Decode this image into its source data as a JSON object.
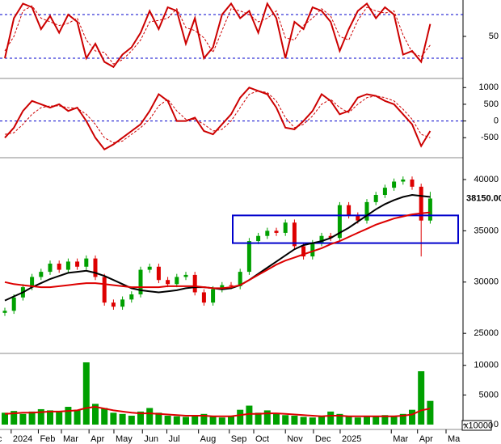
{
  "chart_data": [
    {
      "type": "line",
      "ylim": [
        0,
        100
      ],
      "yticks": [
        50
      ],
      "levels": [
        20,
        80
      ],
      "series": [
        {
          "color": "#cc0000",
          "width": 2,
          "style": "solid",
          "values": [
            20,
            75,
            95,
            90,
            60,
            78,
            55,
            80,
            70,
            20,
            40,
            15,
            8,
            25,
            35,
            55,
            85,
            60,
            90,
            85,
            40,
            75,
            20,
            35,
            80,
            95,
            75,
            85,
            55,
            95,
            75,
            20,
            70,
            60,
            90,
            85,
            70,
            30,
            60,
            85,
            95,
            75,
            90,
            80,
            25,
            30,
            15,
            67
          ]
        },
        {
          "color": "#cc0000",
          "width": 1,
          "style": "dashed",
          "values": [
            30,
            50,
            85,
            92,
            75,
            70,
            65,
            68,
            75,
            45,
            30,
            28,
            12,
            18,
            30,
            45,
            70,
            72,
            75,
            88,
            62,
            58,
            48,
            28,
            58,
            88,
            85,
            80,
            70,
            75,
            85,
            48,
            45,
            65,
            75,
            88,
            78,
            50,
            45,
            72,
            90,
            85,
            82,
            85,
            52,
            28,
            22,
            38
          ]
        }
      ]
    },
    {
      "type": "line",
      "ylim": [
        -1050,
        1200
      ],
      "yticks": [
        1000,
        500,
        0,
        -500
      ],
      "levels": [
        0
      ],
      "series": [
        {
          "color": "#cc0000",
          "width": 2,
          "style": "solid",
          "values": [
            -500,
            -200,
            300,
            600,
            500,
            400,
            500,
            300,
            400,
            0,
            -500,
            -850,
            -700,
            -500,
            -300,
            -100,
            300,
            800,
            600,
            0,
            0,
            100,
            -300,
            -400,
            -100,
            200,
            700,
            1000,
            900,
            800,
            400,
            -200,
            -250,
            0,
            300,
            800,
            600,
            200,
            300,
            700,
            800,
            750,
            600,
            500,
            200,
            -100,
            -750,
            -300
          ]
        },
        {
          "color": "#cc0000",
          "width": 1,
          "style": "dashed",
          "values": [
            -400,
            -350,
            -100,
            200,
            400,
            450,
            450,
            400,
            380,
            200,
            -100,
            -500,
            -650,
            -600,
            -400,
            -200,
            50,
            450,
            650,
            300,
            50,
            50,
            -100,
            -300,
            -250,
            0,
            400,
            800,
            900,
            850,
            600,
            100,
            -200,
            -100,
            150,
            500,
            650,
            400,
            250,
            500,
            700,
            750,
            700,
            600,
            350,
            50,
            -400,
            -500
          ]
        }
      ]
    },
    {
      "type": "candlestick",
      "ylim": [
        23200,
        42050
      ],
      "yticks": [
        25000,
        30000,
        35000,
        40000
      ],
      "up_color": "#00a000",
      "down_color": "#dd0000",
      "box_ylim": [
        33800,
        36500
      ],
      "box_color": "#0000cc",
      "last_price_label": "38150.00",
      "open": [
        27000,
        27200,
        28500,
        29500,
        30500,
        31000,
        31800,
        31200,
        32000,
        31500,
        32300,
        30500,
        28000,
        27600,
        28300,
        28800,
        31200,
        31500,
        30200,
        29800,
        30500,
        30700,
        29000,
        28000,
        29300,
        29700,
        29600,
        31000,
        34000,
        34500,
        35000,
        34800,
        35800,
        33500,
        32500,
        33800,
        34500,
        34300,
        37500,
        36500,
        36000,
        37800,
        38500,
        39200,
        39800,
        40000,
        39300,
        36000
      ],
      "high": [
        27500,
        28800,
        29800,
        30800,
        31300,
        32100,
        32100,
        32300,
        32300,
        32600,
        32600,
        30800,
        28300,
        28600,
        29100,
        31500,
        31800,
        31800,
        30500,
        30800,
        31000,
        31000,
        29300,
        29600,
        30000,
        30000,
        31300,
        34300,
        34800,
        35300,
        35300,
        36100,
        36100,
        33800,
        34100,
        34800,
        34800,
        37800,
        37800,
        36800,
        38100,
        38800,
        39500,
        40100,
        40300,
        40300,
        39600,
        38800
      ],
      "low": [
        26700,
        26900,
        28200,
        29200,
        30200,
        30700,
        30900,
        30900,
        31200,
        31200,
        30200,
        27700,
        27300,
        27300,
        28000,
        28500,
        30900,
        29900,
        29500,
        29500,
        30200,
        28700,
        27700,
        27700,
        29000,
        29300,
        29300,
        30700,
        33700,
        34200,
        34500,
        34500,
        33200,
        32200,
        32200,
        33500,
        34000,
        34000,
        36200,
        35700,
        35700,
        37500,
        38200,
        38900,
        39500,
        39000,
        32500,
        35700
      ],
      "close": [
        27200,
        28500,
        29500,
        30500,
        31000,
        31800,
        31200,
        32000,
        31500,
        32300,
        30500,
        28000,
        27600,
        28300,
        28800,
        31200,
        31500,
        30200,
        29800,
        30500,
        30700,
        29000,
        28000,
        29300,
        29700,
        29600,
        31000,
        34000,
        34500,
        35000,
        34800,
        35800,
        33500,
        32500,
        33800,
        34500,
        34300,
        37500,
        36500,
        36000,
        37800,
        38500,
        39200,
        39800,
        40000,
        39300,
        36000,
        38150
      ],
      "series": [
        {
          "color": "#000000",
          "width": 2,
          "style": "solid",
          "values": [
            28200,
            28600,
            29000,
            29500,
            29900,
            30300,
            30600,
            30900,
            31000,
            31100,
            30900,
            30600,
            30200,
            29800,
            29400,
            29200,
            29100,
            29000,
            29100,
            29200,
            29400,
            29500,
            29500,
            29400,
            29300,
            29400,
            29700,
            30200,
            30800,
            31400,
            32000,
            32600,
            33200,
            33600,
            33800,
            34000,
            34300,
            34800,
            35300,
            35900,
            36500,
            37100,
            37600,
            38000,
            38300,
            38500,
            38400,
            38300
          ]
        },
        {
          "color": "#dd0000",
          "width": 2,
          "style": "solid",
          "values": [
            30000,
            29800,
            29700,
            29600,
            29500,
            29500,
            29600,
            29700,
            29800,
            29900,
            29900,
            29800,
            29700,
            29600,
            29500,
            29500,
            29500,
            29500,
            29600,
            29600,
            29600,
            29600,
            29500,
            29400,
            29400,
            29500,
            29700,
            30200,
            30700,
            31200,
            31700,
            32100,
            32400,
            32700,
            33000,
            33300,
            33700,
            34000,
            34400,
            34800,
            35200,
            35600,
            35900,
            36200,
            36400,
            36600,
            36700,
            36800
          ]
        }
      ]
    },
    {
      "type": "bar",
      "ylim": [
        0,
        11600
      ],
      "yticks": [
        0,
        5000,
        10000
      ],
      "color": "#00a000",
      "unit_label": "x10000",
      "values": [
        2000,
        2300,
        1800,
        2200,
        2600,
        2400,
        2100,
        3000,
        2500,
        10500,
        3500,
        2800,
        2000,
        1800,
        1500,
        2200,
        2800,
        2000,
        1500,
        1400,
        1300,
        1600,
        1800,
        1500,
        1200,
        1400,
        2500,
        3200,
        2000,
        2400,
        1800,
        1600,
        1500,
        1300,
        1200,
        1400,
        2200,
        1800,
        1300,
        1200,
        1500,
        1400,
        1600,
        1500,
        1800,
        2500,
        9000,
        4000
      ],
      "series": [
        {
          "color": "#dd0000",
          "width": 2,
          "style": "solid",
          "values": [
            1800,
            1900,
            2000,
            2000,
            2100,
            2200,
            2200,
            2300,
            2400,
            2800,
            3000,
            2700,
            2400,
            2200,
            2000,
            1900,
            1900,
            1800,
            1700,
            1600,
            1500,
            1500,
            1500,
            1400,
            1400,
            1400,
            1600,
            1800,
            1800,
            1900,
            1900,
            1800,
            1700,
            1600,
            1500,
            1400,
            1500,
            1500,
            1400,
            1400,
            1400,
            1400,
            1400,
            1400,
            1500,
            1700,
            2400,
            2700
          ]
        }
      ],
      "xticks": [
        {
          "value": -1.0,
          "label": "c"
        },
        {
          "value": 0.7,
          "label": "2024"
        },
        {
          "value": 3.7,
          "label": "Feb"
        },
        {
          "value": 6.25,
          "label": "Mar"
        },
        {
          "value": 9.3,
          "label": "Apr"
        },
        {
          "value": 12.05,
          "label": "May"
        },
        {
          "value": 15.2,
          "label": "Jun"
        },
        {
          "value": 17.9,
          "label": "Jul"
        },
        {
          "value": 21.4,
          "label": "Aug"
        },
        {
          "value": 24.8,
          "label": "Sep"
        },
        {
          "value": 27.5,
          "label": "Oct"
        },
        {
          "value": 31.0,
          "label": "Nov"
        },
        {
          "value": 34.1,
          "label": "Dec"
        },
        {
          "value": 37.05,
          "label": "2025"
        },
        {
          "value": 42.7,
          "label": "Mar"
        },
        {
          "value": 45.6,
          "label": "Apr"
        },
        {
          "value": 48.75,
          "label": "Ma"
        }
      ]
    }
  ]
}
